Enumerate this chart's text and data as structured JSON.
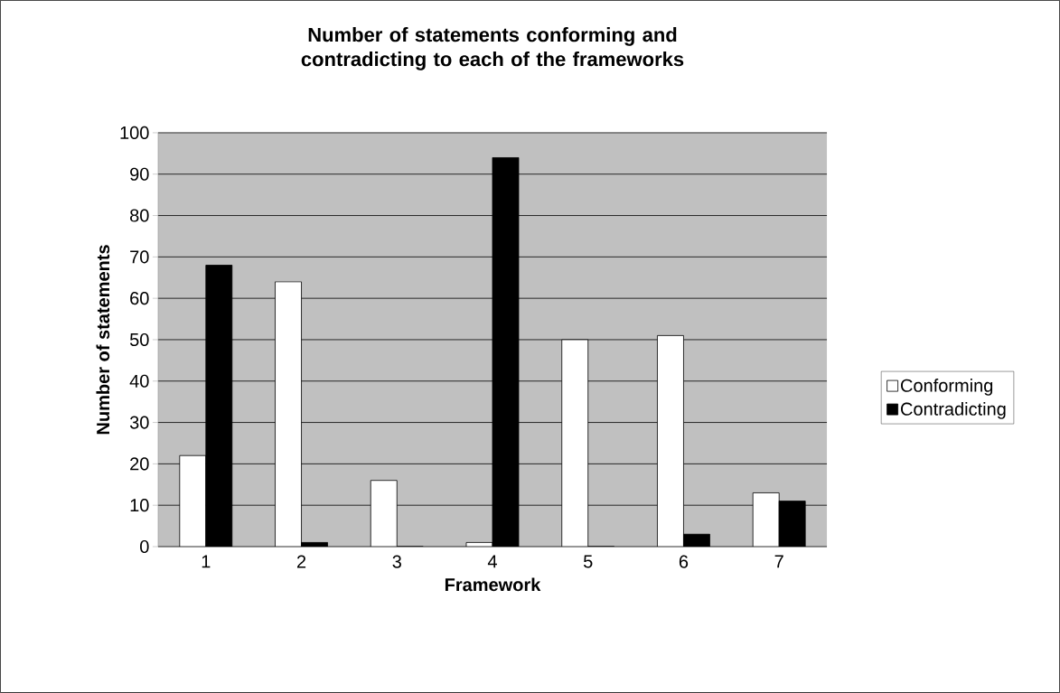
{
  "chart_data": {
    "type": "bar",
    "title": "Number of statements conforming and contradicting to each of the frameworks",
    "xlabel": "Framework",
    "ylabel": "Number of statements",
    "categories": [
      "1",
      "2",
      "3",
      "4",
      "5",
      "6",
      "7"
    ],
    "series": [
      {
        "name": "Conforming",
        "color": "#ffffff",
        "values": [
          22,
          64,
          16,
          1,
          50,
          51,
          13
        ]
      },
      {
        "name": "Contradicting",
        "color": "#000000",
        "values": [
          68,
          1,
          0,
          94,
          0,
          3,
          11
        ]
      }
    ],
    "ylim": [
      0,
      100
    ],
    "yticks": [
      0,
      10,
      20,
      30,
      40,
      50,
      60,
      70,
      80,
      90,
      100
    ],
    "grid": "y",
    "legend": "right"
  }
}
